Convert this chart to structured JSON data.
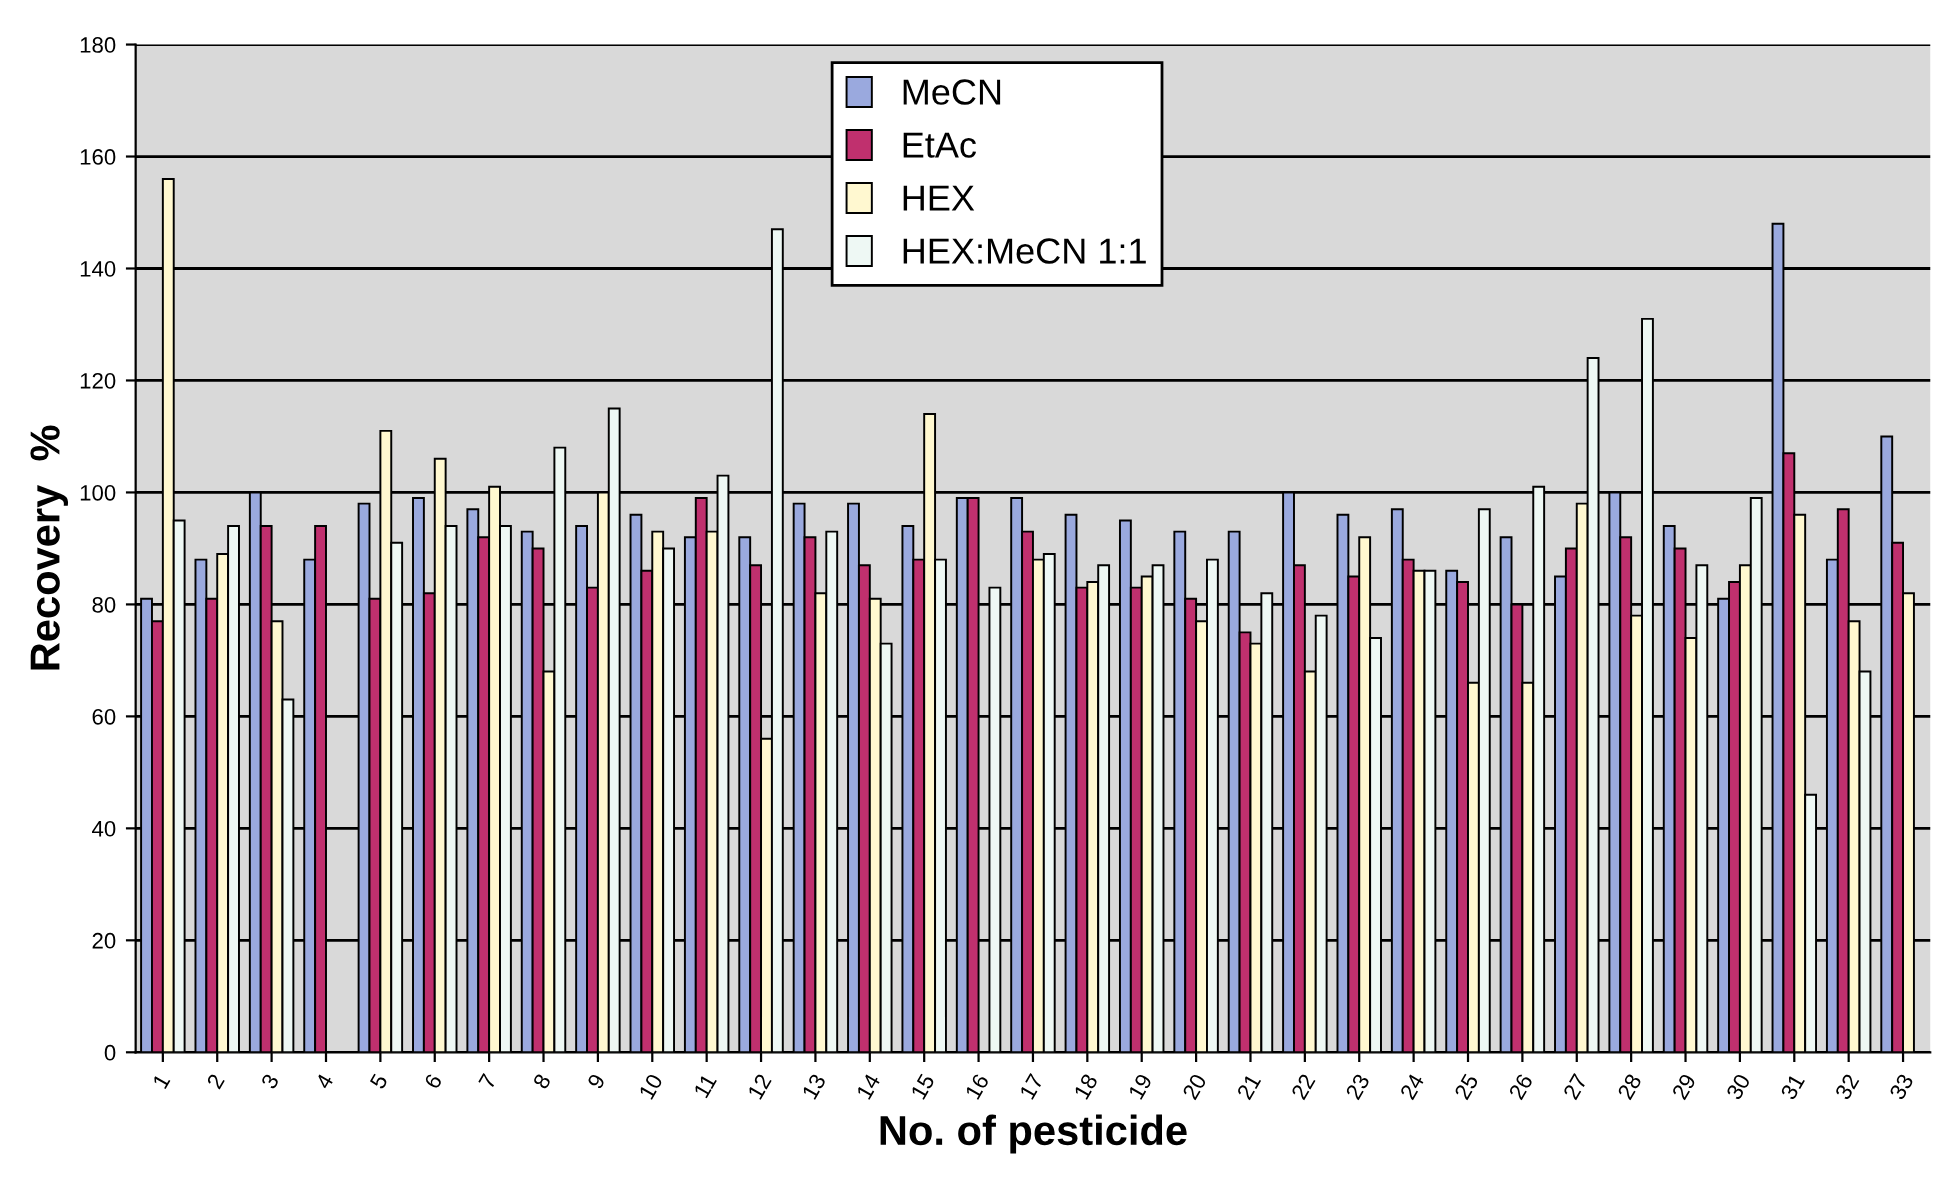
{
  "chart_data": {
    "type": "bar",
    "xlabel": "No. of pesticide",
    "ylabel": "Recovery  %",
    "categories": [
      "1",
      "2",
      "3",
      "4",
      "5",
      "6",
      "7",
      "8",
      "9",
      "10",
      "11",
      "12",
      "13",
      "14",
      "15",
      "16",
      "17",
      "18",
      "19",
      "20",
      "21",
      "22",
      "23",
      "24",
      "25",
      "26",
      "27",
      "28",
      "29",
      "30",
      "31",
      "32",
      "33"
    ],
    "series": [
      {
        "name": "MeCN",
        "color": "#9aa9de",
        "values": [
          81,
          88,
          100,
          88,
          98,
          99,
          97,
          93,
          94,
          96,
          92,
          92,
          98,
          98,
          94,
          99,
          99,
          96,
          95,
          93,
          93,
          100,
          96,
          97,
          86,
          92,
          85,
          100,
          94,
          81,
          148,
          88,
          110
        ]
      },
      {
        "name": "EtAc",
        "color": "#c0306e",
        "values": [
          77,
          81,
          94,
          94,
          81,
          82,
          92,
          90,
          83,
          86,
          99,
          87,
          92,
          87,
          88,
          99,
          93,
          83,
          83,
          81,
          75,
          87,
          85,
          88,
          84,
          80,
          90,
          92,
          90,
          84,
          107,
          97,
          91
        ]
      },
      {
        "name": "HEX",
        "color": "#fff8d0",
        "values": [
          156,
          89,
          77,
          null,
          111,
          106,
          101,
          68,
          100,
          93,
          93,
          56,
          82,
          81,
          114,
          null,
          88,
          84,
          85,
          77,
          73,
          68,
          92,
          86,
          66,
          66,
          98,
          78,
          74,
          87,
          96,
          77,
          82
        ]
      },
      {
        "name": "HEX:MeCN 1:1",
        "color": "#eef8f4",
        "values": [
          95,
          94,
          63,
          null,
          91,
          94,
          94,
          108,
          115,
          90,
          103,
          147,
          93,
          73,
          88,
          83,
          89,
          87,
          87,
          88,
          82,
          78,
          74,
          86,
          97,
          101,
          124,
          131,
          87,
          99,
          46,
          68,
          null
        ]
      }
    ],
    "ylim": [
      0,
      180
    ],
    "yticks": [
      0,
      20,
      40,
      60,
      80,
      100,
      120,
      140,
      160,
      180
    ],
    "grid": "y",
    "legend": "top"
  }
}
